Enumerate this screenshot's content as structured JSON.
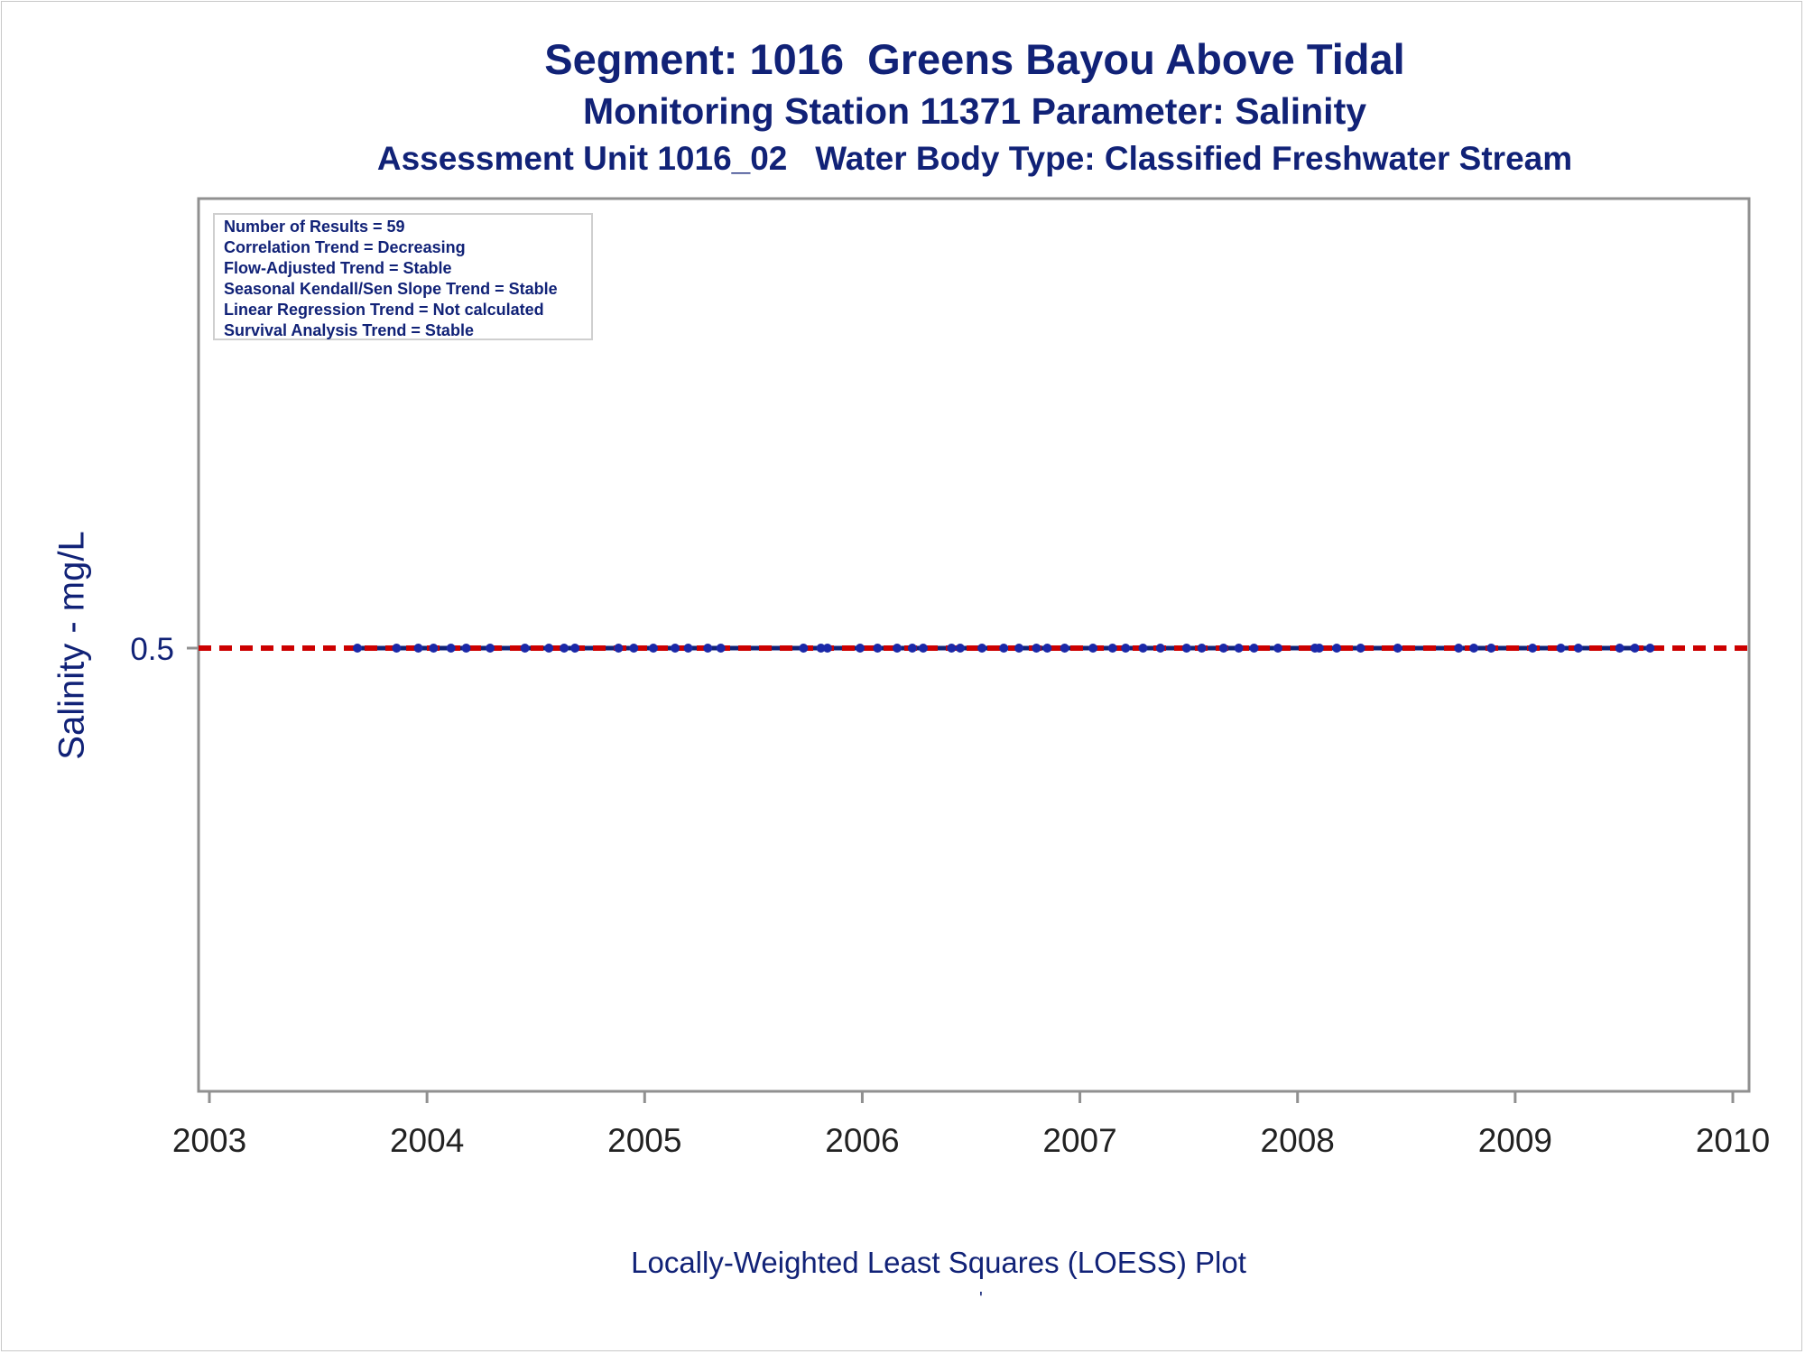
{
  "chart_data": {
    "type": "scatter",
    "title": "Segment: 1016  Greens Bayou Above Tidal",
    "subtitle": "Monitoring Station 11371 Parameter: Salinity",
    "subtitle2": "Assessment Unit 1016_02   Water Body Type: Classified Freshwater Stream",
    "ylabel": "Salinity - mg/L",
    "xlabel": "",
    "footnote": "Locally-Weighted Least Squares (LOESS) Plot",
    "footnote_mark": "'",
    "xlim": [
      2003,
      2010
    ],
    "ylim": [
      0,
      1
    ],
    "x_ticks": [
      "2003",
      "2004",
      "2005",
      "2006",
      "2007",
      "2008",
      "2009",
      "2010"
    ],
    "y_ticks": [
      {
        "value": 0.5,
        "label": "0.5"
      }
    ],
    "reference_line": {
      "value": 0.5,
      "style": "dashed",
      "color": "#cc0000"
    },
    "loess_line": {
      "value": 0.5,
      "color": "#112277"
    },
    "point_color": "#1a28a8",
    "series": [
      {
        "x": [
          2003.68,
          2003.86,
          2003.96,
          2004.03,
          2004.11,
          2004.18,
          2004.29,
          2004.45,
          2004.56,
          2004.63,
          2004.68,
          2004.88,
          2004.95,
          2005.04,
          2005.14,
          2005.2,
          2005.29,
          2005.35,
          2005.73,
          2005.81,
          2005.84,
          2005.99,
          2006.07,
          2006.16,
          2006.23,
          2006.28,
          2006.41,
          2006.45,
          2006.55,
          2006.65,
          2006.72,
          2006.8,
          2006.85,
          2006.93,
          2007.06,
          2007.15,
          2007.21,
          2007.29,
          2007.37,
          2007.49,
          2007.56,
          2007.66,
          2007.73,
          2007.8,
          2007.91,
          2008.08,
          2008.1,
          2008.18,
          2008.29,
          2008.46,
          2008.74,
          2008.81,
          2008.89,
          2009.08,
          2009.21,
          2009.29,
          2009.48,
          2009.55,
          2009.62
        ],
        "y": [
          0.5,
          0.5,
          0.5,
          0.5,
          0.5,
          0.5,
          0.5,
          0.5,
          0.5,
          0.5,
          0.5,
          0.5,
          0.5,
          0.5,
          0.5,
          0.5,
          0.5,
          0.5,
          0.5,
          0.5,
          0.5,
          0.5,
          0.5,
          0.5,
          0.5,
          0.5,
          0.5,
          0.5,
          0.5,
          0.5,
          0.5,
          0.5,
          0.5,
          0.5,
          0.5,
          0.5,
          0.5,
          0.5,
          0.5,
          0.5,
          0.5,
          0.5,
          0.5,
          0.5,
          0.5,
          0.5,
          0.5,
          0.5,
          0.5,
          0.5,
          0.5,
          0.5,
          0.5,
          0.5,
          0.5,
          0.5,
          0.5,
          0.5,
          0.5
        ]
      }
    ],
    "stats_box": [
      "Number of Results = 59",
      "Correlation Trend = Decreasing",
      "Flow-Adjusted Trend = Stable",
      "Seasonal Kendall/Sen Slope Trend = Stable",
      "Linear Regression Trend = Not calculated",
      "Survival Analysis Trend = Stable"
    ],
    "grid": false
  }
}
